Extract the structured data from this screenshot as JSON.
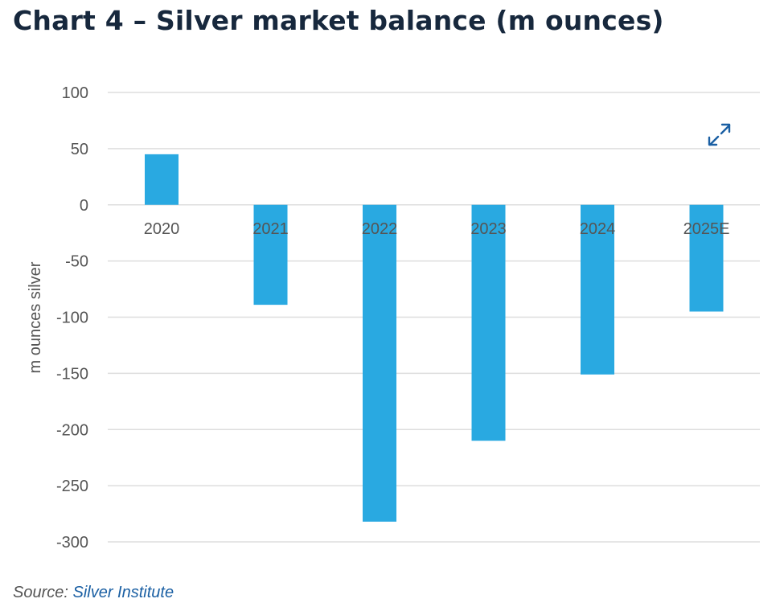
{
  "page": {
    "title": "Chart 4 – Silver market balance (m ounces)",
    "source_prefix": "Source: ",
    "source_name": "Silver Institute",
    "expand_icon": "expand-icon"
  },
  "colors": {
    "bar": "#29a9e1",
    "grid": "#dedede",
    "title": "#17283d",
    "axis_text": "#555555",
    "link": "#1a5fa3"
  },
  "chart_data": {
    "type": "bar",
    "title": "Chart 4 – Silver market balance (m ounces)",
    "ylabel": "m ounces silver",
    "xlabel": "",
    "categories": [
      "2020",
      "2021",
      "2022",
      "2023",
      "2024",
      "2025E"
    ],
    "values": [
      45,
      -89,
      -282,
      -210,
      -151,
      -95
    ],
    "ylim": [
      -300,
      100
    ],
    "yticks": [
      100,
      50,
      0,
      -50,
      -100,
      -150,
      -200,
      -250,
      -300
    ],
    "ytick_labels": [
      "100",
      "50",
      "0",
      "-50",
      "-100",
      "-150",
      "-200",
      "-250",
      "-300"
    ],
    "grid": true,
    "legend": "none"
  }
}
